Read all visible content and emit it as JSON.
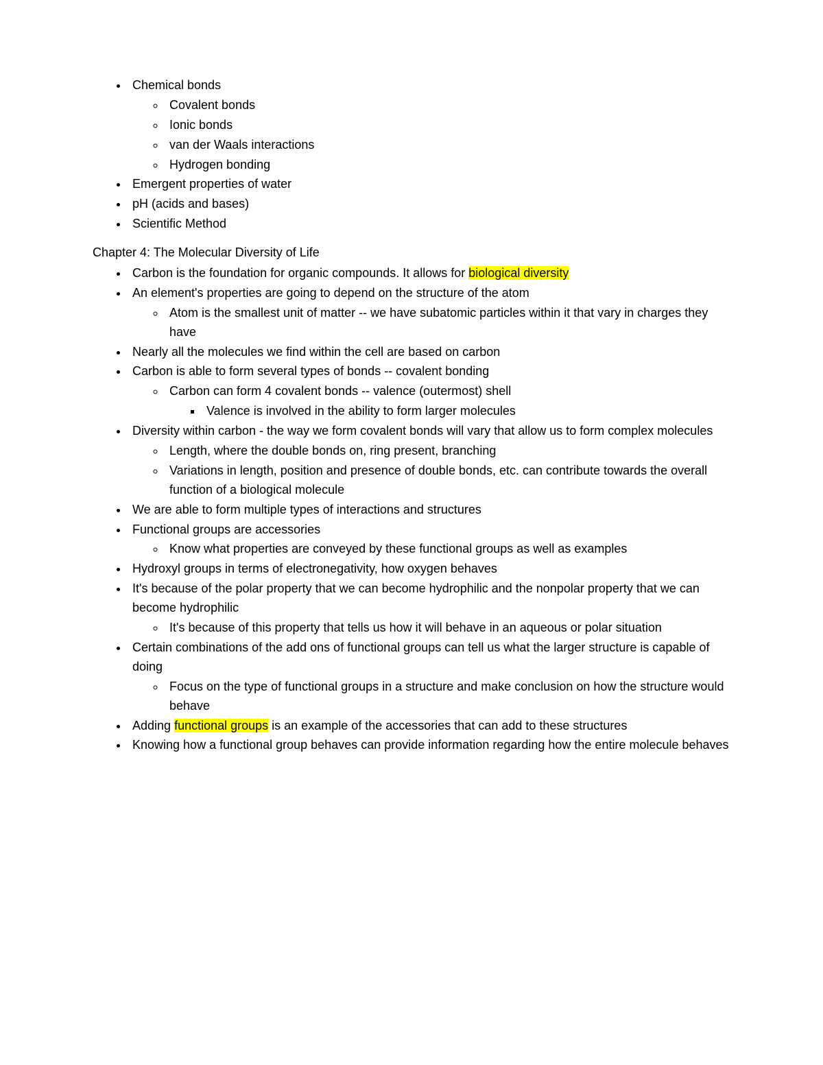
{
  "topList": {
    "items": [
      {
        "text": "Chemical bonds",
        "children": [
          {
            "text": "Covalent bonds"
          },
          {
            "text": "Ionic bonds"
          },
          {
            "text": "van der Waals interactions"
          },
          {
            "text": "Hydrogen bonding"
          }
        ]
      },
      {
        "text": "Emergent properties of water"
      },
      {
        "text": "pH (acids and bases)"
      },
      {
        "text": "Scientific Method"
      }
    ]
  },
  "chapter": {
    "title": "Chapter 4: The Molecular Diversity of Life",
    "items": [
      {
        "pre": "Carbon is the foundation for organic compounds. It allows for ",
        "highlight": "biological diversity",
        "post": ""
      },
      {
        "text": "An element's properties are going to depend on the structure of the atom",
        "children": [
          {
            "text": "Atom is the smallest unit of matter -- we have subatomic particles within it that vary in charges they have"
          }
        ]
      },
      {
        "text": "Nearly all the molecules we find within the cell are based on carbon"
      },
      {
        "text": "Carbon is able to form several types of bonds -- covalent bonding",
        "children": [
          {
            "text": "Carbon can form 4 covalent bonds -- valence (outermost) shell",
            "children": [
              {
                "text": "Valence is involved in the ability to form larger molecules"
              }
            ]
          }
        ]
      },
      {
        "text": "Diversity within carbon - the way we form covalent bonds will vary that allow us to form complex molecules",
        "children": [
          {
            "text": "Length, where the double bonds on, ring present, branching"
          },
          {
            "text": "Variations in length, position and presence of double bonds, etc. can contribute towards the overall function of a biological molecule"
          }
        ]
      },
      {
        "text": "We are able to form multiple types of interactions and structures"
      },
      {
        "text": "Functional groups are accessories",
        "children": [
          {
            "text": "Know what properties are conveyed by these functional groups as well as examples"
          }
        ]
      },
      {
        "text": "Hydroxyl groups in terms of electronegativity, how oxygen behaves"
      },
      {
        "text": "It's because of the polar property that we can become hydrophilic and the nonpolar property that we can become hydrophilic",
        "children": [
          {
            "text": "It's because of this property that tells us how it will behave in an aqueous or polar situation"
          }
        ]
      },
      {
        "text": "Certain combinations of the add ons of functional groups can tell us what the larger structure is capable of doing",
        "children": [
          {
            "text": "Focus on the type of functional groups in a structure and make conclusion on how the structure would behave"
          }
        ]
      },
      {
        "pre": "Adding ",
        "highlight": "functional groups",
        "post": " is an example of the accessories that can add to these structures"
      },
      {
        "text": "Knowing how a functional group behaves can provide information regarding how the entire molecule behaves"
      }
    ]
  },
  "colors": {
    "highlight": "#ffff00",
    "text": "#000000",
    "background": "#ffffff"
  }
}
